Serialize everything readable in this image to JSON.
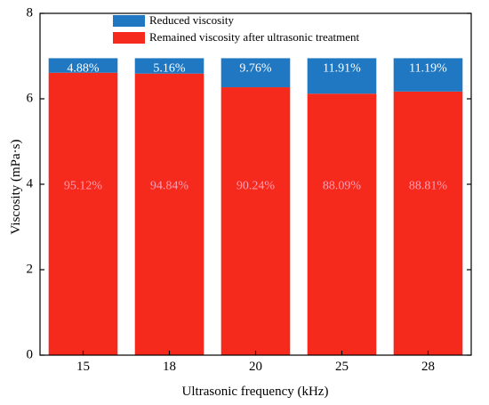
{
  "chart_data": {
    "type": "bar",
    "stacked": true,
    "categories": [
      "15",
      "18",
      "20",
      "25",
      "28"
    ],
    "xlabel": "Ultrasonic frequency (kHz)",
    "ylabel": "Viscosity (mPa·s)",
    "ylim": [
      0,
      8
    ],
    "yticks": [
      "0",
      "2",
      "4",
      "6",
      "8"
    ],
    "grid": false,
    "legend_position": "top",
    "series": [
      {
        "name": "Remained viscosity after ultrasonic treatment",
        "color": "#f52a1c",
        "values": [
          6.61,
          6.59,
          6.27,
          6.12,
          6.17
        ],
        "labels": [
          "95.12%",
          "94.84%",
          "90.24%",
          "88.09%",
          "88.81%"
        ]
      },
      {
        "name": "Reduced viscosity",
        "color": "#1f78c1",
        "values": [
          0.34,
          0.36,
          0.68,
          0.83,
          0.78
        ],
        "labels": [
          "4.88%",
          "5.16%",
          "9.76%",
          "11.91%",
          "11.19%"
        ]
      }
    ],
    "data_label_colors": {
      "remained": "#ff9fb4",
      "reduced": "#ffffff"
    }
  }
}
